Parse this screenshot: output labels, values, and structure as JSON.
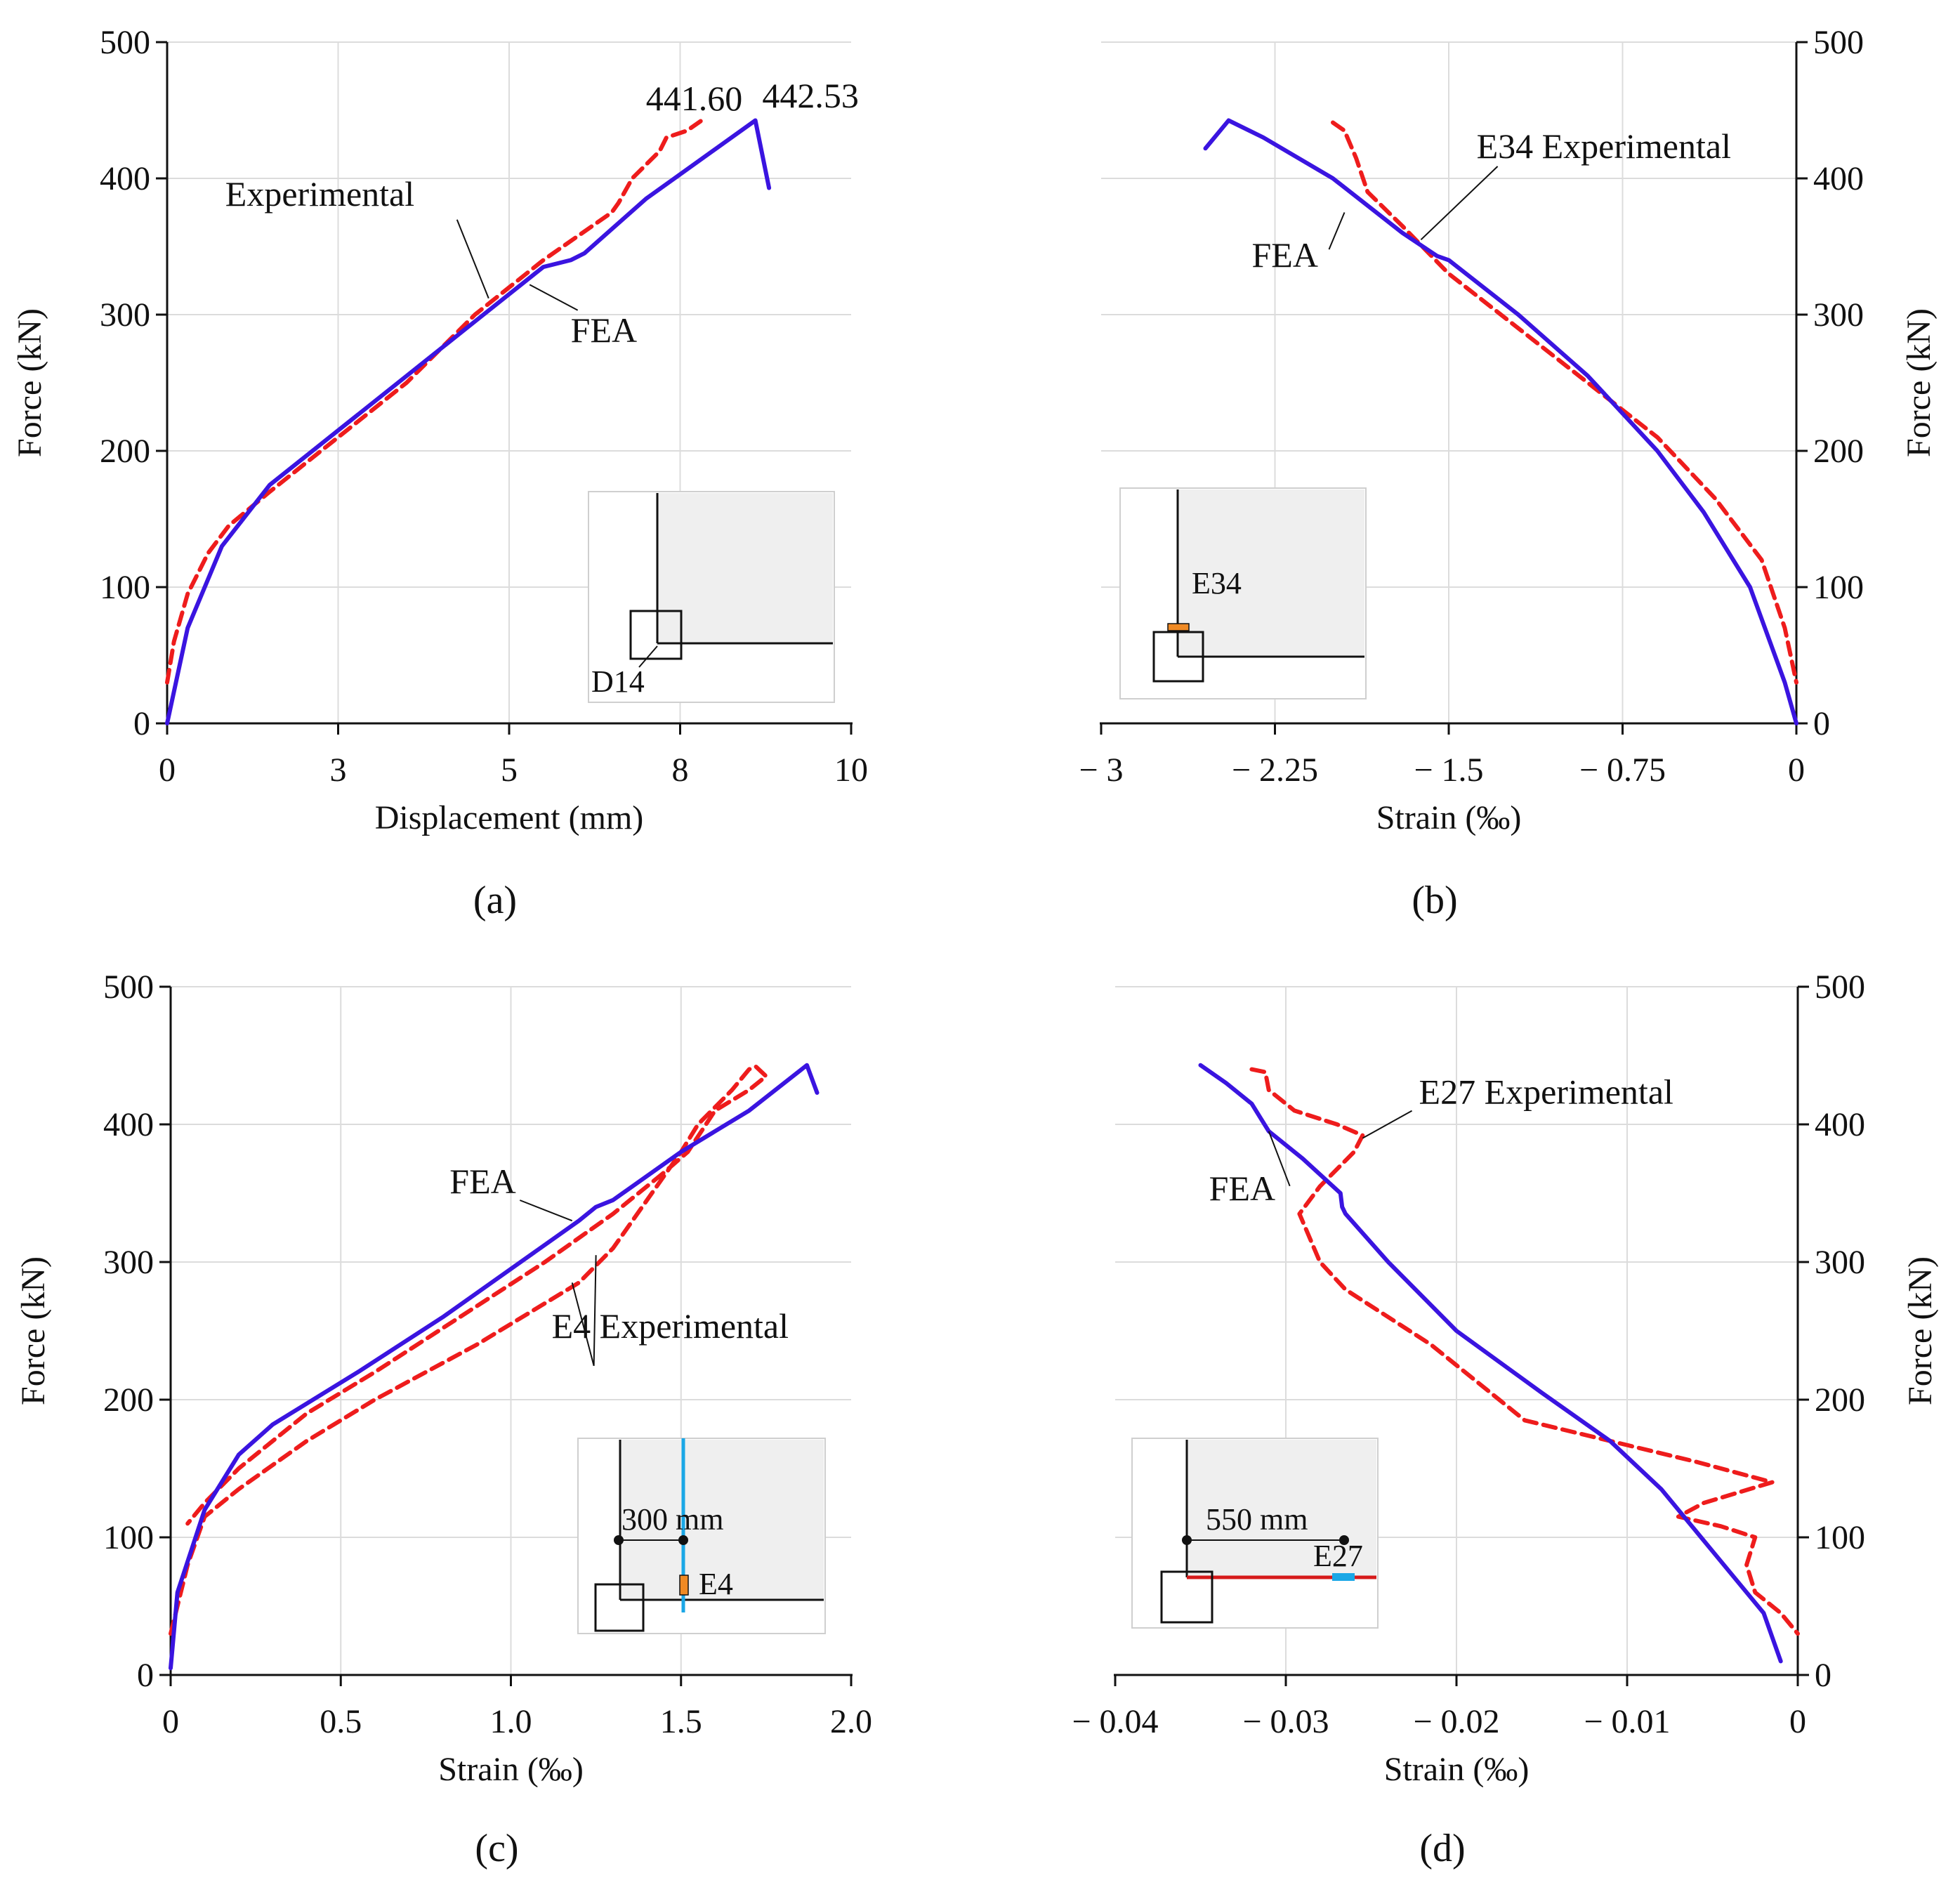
{
  "figure": {
    "colors": {
      "experimental": "#ee1c1c",
      "fea": "#3a14e0",
      "grid": "#dcdcdc",
      "axis": "#111111",
      "inset_fill": "#efefef",
      "gauge_orange": "#f08a24",
      "gauge_blue": "#1aa7e6",
      "inset_red": "#d61a1a"
    }
  },
  "chart_data": [
    {
      "id": "a",
      "type": "line",
      "panel_label": "(a)",
      "xlabel": "Displacement (mm)",
      "ylabel": "Force (kN)",
      "y_axis_side": "left",
      "xlim": [
        0,
        10
      ],
      "ylim": [
        0,
        500
      ],
      "x_ticks": [
        0,
        2.5,
        5,
        7.5,
        10
      ],
      "x_tick_labels": [
        "0",
        "3",
        "5",
        "8",
        "10"
      ],
      "y_ticks": [
        0,
        100,
        200,
        300,
        400,
        500
      ],
      "y_tick_labels": [
        "0",
        "100",
        "200",
        "300",
        "400",
        "500"
      ],
      "series": [
        {
          "name": "Experimental",
          "style": "dashed",
          "color": "#ee1c1c",
          "points": [
            [
              0,
              30
            ],
            [
              0.1,
              60
            ],
            [
              0.3,
              95
            ],
            [
              0.6,
              125
            ],
            [
              0.9,
              145
            ],
            [
              1.5,
              170
            ],
            [
              2.5,
              210
            ],
            [
              3.5,
              250
            ],
            [
              4.5,
              300
            ],
            [
              5.5,
              340
            ],
            [
              6.5,
              375
            ],
            [
              6.6,
              382
            ],
            [
              6.8,
              400
            ],
            [
              7.2,
              420
            ],
            [
              7.3,
              430
            ],
            [
              7.6,
              435
            ],
            [
              7.8,
              442
            ]
          ]
        },
        {
          "name": "FEA",
          "style": "solid",
          "color": "#3a14e0",
          "points": [
            [
              0,
              0
            ],
            [
              0.3,
              70
            ],
            [
              0.8,
              130
            ],
            [
              1.5,
              175
            ],
            [
              2.5,
              215
            ],
            [
              3.5,
              255
            ],
            [
              4.5,
              295
            ],
            [
              5.5,
              335
            ],
            [
              5.9,
              340
            ],
            [
              6.1,
              345
            ],
            [
              7,
              385
            ],
            [
              8.6,
              442.53
            ],
            [
              8.8,
              393
            ]
          ]
        }
      ],
      "annotations": [
        {
          "text": "441.60",
          "x": 7.0,
          "y": 450
        },
        {
          "text": "442.53",
          "x": 8.7,
          "y": 452
        },
        {
          "text": "Experimental",
          "x": 0.85,
          "y": 380,
          "target": [
            4.7,
            312
          ]
        },
        {
          "text": "FEA",
          "x": 5.9,
          "y": 280,
          "target": [
            5.3,
            322
          ]
        }
      ],
      "inset": {
        "gauge_label": "D14"
      }
    },
    {
      "id": "b",
      "type": "line",
      "panel_label": "(b)",
      "xlabel": "Strain (‰)",
      "ylabel": "Force (kN)",
      "y_axis_side": "right",
      "xlim": [
        -3,
        0
      ],
      "ylim": [
        0,
        500
      ],
      "x_ticks": [
        -3,
        -2.25,
        -1.5,
        -0.75,
        0
      ],
      "x_tick_labels": [
        "− 3",
        "− 2.25",
        "− 1.5",
        "− 0.75",
        "0"
      ],
      "y_ticks": [
        0,
        100,
        200,
        300,
        400,
        500
      ],
      "y_tick_labels": [
        "0",
        "100",
        "200",
        "300",
        "400",
        "500"
      ],
      "series": [
        {
          "name": "E34 Experimental",
          "style": "dashed",
          "color": "#ee1c1c",
          "points": [
            [
              -2.0,
              441
            ],
            [
              -1.95,
              435
            ],
            [
              -1.9,
              415
            ],
            [
              -1.85,
              390
            ],
            [
              -1.7,
              365
            ],
            [
              -1.5,
              330
            ],
            [
              -1.2,
              290
            ],
            [
              -0.9,
              250
            ],
            [
              -0.6,
              210
            ],
            [
              -0.35,
              165
            ],
            [
              -0.15,
              120
            ],
            [
              -0.05,
              70
            ],
            [
              0,
              30
            ]
          ]
        },
        {
          "name": "FEA",
          "style": "solid",
          "color": "#3a14e0",
          "points": [
            [
              -2.55,
              422
            ],
            [
              -2.45,
              442.53
            ],
            [
              -2.3,
              430
            ],
            [
              -2.0,
              400
            ],
            [
              -1.7,
              360
            ],
            [
              -1.55,
              343
            ],
            [
              -1.5,
              340
            ],
            [
              -1.2,
              300
            ],
            [
              -0.9,
              255
            ],
            [
              -0.6,
              200
            ],
            [
              -0.4,
              155
            ],
            [
              -0.2,
              100
            ],
            [
              -0.05,
              30
            ],
            [
              0,
              0
            ]
          ]
        }
      ],
      "annotations": [
        {
          "text": "E34 Experimental",
          "x": -1.38,
          "y": 415,
          "target": [
            -1.62,
            355
          ]
        },
        {
          "text": "FEA",
          "x": -2.35,
          "y": 335,
          "target": [
            -1.95,
            375
          ]
        }
      ],
      "inset": {
        "gauge_label": "E34"
      }
    },
    {
      "id": "c",
      "type": "line",
      "panel_label": "(c)",
      "xlabel": "Strain (‰)",
      "ylabel": "Force (kN)",
      "y_axis_side": "left",
      "xlim": [
        0,
        2.0
      ],
      "ylim": [
        0,
        500
      ],
      "x_ticks": [
        0,
        0.5,
        1.0,
        1.5,
        2.0
      ],
      "x_tick_labels": [
        "0",
        "0.5",
        "1.0",
        "1.5",
        "2.0"
      ],
      "y_ticks": [
        0,
        100,
        200,
        300,
        400,
        500
      ],
      "y_tick_labels": [
        "0",
        "100",
        "200",
        "300",
        "400",
        "500"
      ],
      "series": [
        {
          "name": "E4 Experimental",
          "style": "dashed",
          "color": "#ee1c1c",
          "points": [
            [
              0,
              30
            ],
            [
              0.05,
              80
            ],
            [
              0.1,
              115
            ],
            [
              0.2,
              135
            ],
            [
              0.4,
              170
            ],
            [
              0.6,
              200
            ],
            [
              0.9,
              240
            ],
            [
              1.2,
              285
            ],
            [
              1.3,
              310
            ],
            [
              1.5,
              380
            ],
            [
              1.55,
              400
            ],
            [
              1.65,
              425
            ],
            [
              1.7,
              440
            ],
            [
              1.72,
              442
            ],
            [
              1.75,
              435
            ],
            [
              1.7,
              425
            ],
            [
              1.6,
              410
            ],
            [
              1.52,
              380
            ],
            [
              1.45,
              365
            ],
            [
              1.3,
              335
            ],
            [
              1.1,
              300
            ],
            [
              0.85,
              260
            ],
            [
              0.6,
              220
            ],
            [
              0.4,
              190
            ],
            [
              0.2,
              150
            ],
            [
              0.1,
              125
            ],
            [
              0.05,
              110
            ]
          ]
        },
        {
          "name": "FEA",
          "style": "solid",
          "color": "#3a14e0",
          "points": [
            [
              0,
              5
            ],
            [
              0.02,
              60
            ],
            [
              0.1,
              120
            ],
            [
              0.2,
              160
            ],
            [
              0.3,
              182
            ],
            [
              0.55,
              220
            ],
            [
              0.8,
              260
            ],
            [
              1.0,
              295
            ],
            [
              1.2,
              330
            ],
            [
              1.25,
              340
            ],
            [
              1.3,
              345
            ],
            [
              1.5,
              380
            ],
            [
              1.7,
              410
            ],
            [
              1.87,
              443
            ],
            [
              1.9,
              423
            ]
          ]
        }
      ],
      "annotations": [
        {
          "text": "FEA",
          "x": 0.82,
          "y": 350,
          "target": [
            1.18,
            330
          ]
        },
        {
          "text": "E4 Experimental",
          "x": 1.12,
          "y": 245,
          "target": [
            1.25,
            305
          ]
        }
      ],
      "inset": {
        "gauge_label": "E4",
        "dimension_label": "300 mm"
      }
    },
    {
      "id": "d",
      "type": "line",
      "panel_label": "(d)",
      "xlabel": "Strain (‰)",
      "ylabel": "Force (kN)",
      "y_axis_side": "right",
      "xlim": [
        -0.04,
        0
      ],
      "ylim": [
        0,
        500
      ],
      "x_ticks": [
        -0.04,
        -0.03,
        -0.02,
        -0.01,
        0
      ],
      "x_tick_labels": [
        "− 0.04",
        "− 0.03",
        "− 0.02",
        "− 0.01",
        "0"
      ],
      "y_ticks": [
        0,
        100,
        200,
        300,
        400,
        500
      ],
      "y_tick_labels": [
        "0",
        "100",
        "200",
        "300",
        "400",
        "500"
      ],
      "series": [
        {
          "name": "E27 Experimental",
          "style": "dashed",
          "color": "#ee1c1c",
          "points": [
            [
              -0.032,
              440
            ],
            [
              -0.0312,
              438
            ],
            [
              -0.031,
              425
            ],
            [
              -0.0295,
              410
            ],
            [
              -0.027,
              400
            ],
            [
              -0.0255,
              392
            ],
            [
              -0.026,
              380
            ],
            [
              -0.028,
              355
            ],
            [
              -0.0292,
              335
            ],
            [
              -0.028,
              300
            ],
            [
              -0.0265,
              280
            ],
            [
              -0.024,
              260
            ],
            [
              -0.0215,
              240
            ],
            [
              -0.02,
              225
            ],
            [
              -0.0175,
              200
            ],
            [
              -0.016,
              185
            ],
            [
              -0.011,
              170
            ],
            [
              -0.006,
              155
            ],
            [
              -0.0015,
              140
            ],
            [
              -0.0055,
              125
            ],
            [
              -0.007,
              115
            ],
            [
              -0.0045,
              108
            ],
            [
              -0.0025,
              100
            ],
            [
              -0.003,
              80
            ],
            [
              -0.0025,
              60
            ],
            [
              -0.001,
              45
            ],
            [
              0,
              30
            ]
          ]
        },
        {
          "name": "FEA",
          "style": "solid",
          "color": "#3a14e0",
          "points": [
            [
              -0.035,
              443
            ],
            [
              -0.0335,
              430
            ],
            [
              -0.032,
              415
            ],
            [
              -0.0315,
              405
            ],
            [
              -0.031,
              395
            ],
            [
              -0.029,
              375
            ],
            [
              -0.0268,
              350
            ],
            [
              -0.0267,
              340
            ],
            [
              -0.0265,
              335
            ],
            [
              -0.024,
              300
            ],
            [
              -0.02,
              250
            ],
            [
              -0.015,
              205
            ],
            [
              -0.011,
              170
            ],
            [
              -0.008,
              135
            ],
            [
              -0.005,
              90
            ],
            [
              -0.002,
              45
            ],
            [
              -0.001,
              10
            ]
          ]
        }
      ],
      "annotations": [
        {
          "text": "E27 Experimental",
          "x": -0.0222,
          "y": 415,
          "target": [
            -0.0255,
            390
          ]
        },
        {
          "text": "FEA",
          "x": -0.0345,
          "y": 345,
          "target": [
            -0.031,
            395
          ]
        }
      ],
      "inset": {
        "gauge_label": "E27",
        "dimension_label": "550 mm"
      }
    }
  ]
}
